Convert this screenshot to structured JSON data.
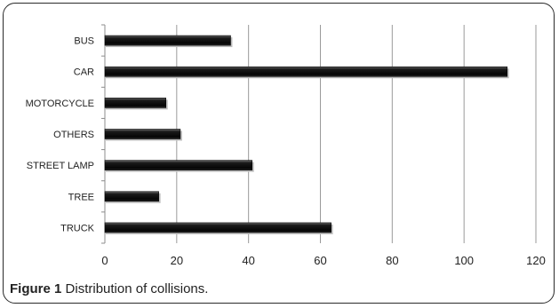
{
  "chart_data": {
    "type": "bar",
    "orientation": "horizontal",
    "categories": [
      "BUS",
      "CAR",
      "MOTORCYCLE",
      "OTHERS",
      "STREET LAMP",
      "TREE",
      "TRUCK"
    ],
    "values": [
      35,
      112,
      17,
      21,
      41,
      15,
      63
    ],
    "xlim": [
      0,
      120
    ],
    "xticks": [
      0,
      20,
      40,
      60,
      80,
      100,
      120
    ],
    "grid": "vertical",
    "bar_color": "#111111"
  },
  "caption": {
    "label": "Figure 1",
    "text": "Distribution of collisions."
  }
}
